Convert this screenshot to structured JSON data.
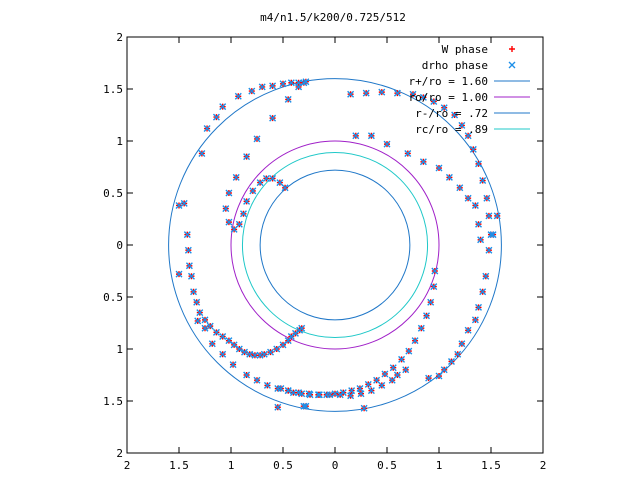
{
  "chart_data": {
    "type": "scatter",
    "title": "m4/n1.5/k200/0.725/512",
    "xlim": [
      -2,
      2
    ],
    "ylim": [
      -2,
      2
    ],
    "xticks": [
      -2,
      -1.5,
      -1,
      -0.5,
      0,
      0.5,
      1,
      1.5,
      2
    ],
    "xtick_labels": [
      "2",
      "1.5",
      "1",
      "0.5",
      "0",
      "0.5",
      "1",
      "1.5",
      "2"
    ],
    "yticks": [
      -2,
      -1.5,
      -1,
      -0.5,
      0,
      0.5,
      1,
      1.5,
      2
    ],
    "ytick_labels": [
      "2",
      "1.5",
      "1",
      "0.5",
      "0",
      "0.5",
      "1",
      "1.5",
      "2"
    ],
    "grid": false,
    "legend_position": "top-right",
    "series": [
      {
        "name": "W phase",
        "kind": "points",
        "marker": "plus",
        "color": "#ff0000",
        "x": [
          -1.5,
          -1.5,
          -1.45,
          -1.42,
          -1.41,
          -1.4,
          -1.38,
          -1.36,
          -1.33,
          -1.3,
          -1.25,
          -1.2,
          -1.14,
          -1.08,
          -1.02,
          -0.97,
          -0.92,
          -0.87,
          -0.82,
          -0.77,
          -0.72,
          -0.68,
          -0.62,
          -0.56,
          -0.5,
          -0.45,
          -0.42,
          -0.38,
          -0.34,
          -0.32,
          -1.28,
          -1.23,
          -1.14,
          -1.08,
          -0.93,
          -0.8,
          -0.7,
          -0.6,
          -0.5,
          -0.42,
          -0.35,
          -0.3,
          -0.28,
          -0.35,
          -0.45,
          -0.6,
          -0.75,
          -0.85,
          -0.95,
          -1.02,
          -1.05,
          -1.02,
          -0.97,
          -0.92,
          -0.88,
          -0.85,
          -0.79,
          -0.72,
          -0.66,
          -0.6,
          -0.53,
          -0.48,
          -1.32,
          -1.25,
          -1.18,
          -1.08,
          -0.98,
          -0.85,
          -0.75,
          -0.65,
          -0.55,
          -0.45,
          -0.35,
          -0.25,
          -0.15,
          -0.05,
          0.05,
          0.15,
          0.25,
          0.35,
          0.45,
          0.55,
          0.6,
          0.68,
          -0.28,
          0.15,
          0.3,
          0.45,
          0.6,
          0.75,
          0.85,
          0.95,
          1.05,
          1.15,
          1.22,
          1.28,
          1.33,
          1.38,
          1.42,
          1.46,
          1.48,
          1.5,
          0.2,
          0.35,
          0.5,
          0.7,
          0.85,
          1.0,
          1.1,
          1.2,
          1.28,
          1.35,
          1.38,
          1.4,
          0.96,
          0.95,
          0.92,
          0.88,
          0.83,
          0.77,
          0.71,
          0.64,
          0.56,
          0.48,
          0.4,
          0.32,
          0.24,
          0.16,
          0.08,
          0.0,
          -0.08,
          -0.16,
          -0.24,
          -0.32,
          -0.4,
          -0.45,
          -0.52,
          0.9,
          1.0,
          1.05,
          1.12,
          1.18,
          1.22,
          1.28,
          1.35,
          1.38,
          1.42,
          1.45,
          1.48,
          1.52,
          1.56,
          0.28,
          -0.3,
          -0.55
        ],
        "y": [
          0.38,
          -0.28,
          0.4,
          0.1,
          -0.05,
          -0.2,
          -0.3,
          -0.45,
          -0.55,
          -0.65,
          -0.72,
          -0.78,
          -0.84,
          -0.88,
          -0.92,
          -0.96,
          -1.0,
          -1.03,
          -1.05,
          -1.06,
          -1.06,
          -1.05,
          -1.03,
          -1.0,
          -0.96,
          -0.92,
          -0.88,
          -0.85,
          -0.82,
          -0.8,
          0.88,
          1.12,
          1.23,
          1.33,
          1.43,
          1.48,
          1.52,
          1.53,
          1.55,
          1.56,
          1.56,
          1.56,
          1.57,
          1.52,
          1.4,
          1.22,
          1.02,
          0.85,
          0.65,
          0.5,
          0.35,
          0.22,
          0.15,
          0.2,
          0.3,
          0.42,
          0.52,
          0.6,
          0.64,
          0.64,
          0.6,
          0.55,
          -0.73,
          -0.8,
          -0.95,
          -1.05,
          -1.15,
          -1.25,
          -1.3,
          -1.35,
          -1.38,
          -1.4,
          -1.42,
          -1.43,
          -1.44,
          -1.44,
          -1.44,
          -1.45,
          -1.43,
          -1.4,
          -1.35,
          -1.3,
          -1.25,
          -1.2,
          -1.55,
          1.45,
          1.46,
          1.47,
          1.46,
          1.45,
          1.42,
          1.38,
          1.32,
          1.25,
          1.15,
          1.05,
          0.92,
          0.78,
          0.62,
          0.45,
          0.28,
          0.1,
          1.05,
          1.05,
          0.97,
          0.88,
          0.8,
          0.74,
          0.65,
          0.55,
          0.45,
          0.38,
          0.2,
          0.05,
          -0.25,
          -0.4,
          -0.55,
          -0.68,
          -0.8,
          -0.92,
          -1.02,
          -1.1,
          -1.18,
          -1.24,
          -1.3,
          -1.34,
          -1.38,
          -1.4,
          -1.42,
          -1.43,
          -1.44,
          -1.44,
          -1.44,
          -1.43,
          -1.42,
          -1.4,
          -1.38,
          -1.28,
          -1.26,
          -1.2,
          -1.12,
          -1.05,
          -0.95,
          -0.82,
          -0.72,
          -0.6,
          -0.45,
          -0.3,
          -0.05,
          0.1,
          0.28,
          -1.57,
          -1.55,
          -1.56
        ]
      },
      {
        "name": "drho phase",
        "kind": "points",
        "marker": "cross",
        "color": "#1e8fe8",
        "x": [
          -1.5,
          -1.5,
          -1.45,
          -1.42,
          -1.41,
          -1.4,
          -1.38,
          -1.36,
          -1.33,
          -1.3,
          -1.25,
          -1.2,
          -1.14,
          -1.08,
          -1.02,
          -0.97,
          -0.92,
          -0.87,
          -0.82,
          -0.77,
          -0.72,
          -0.68,
          -0.62,
          -0.56,
          -0.5,
          -0.45,
          -0.42,
          -0.38,
          -0.34,
          -0.32,
          -1.28,
          -1.23,
          -1.14,
          -1.08,
          -0.93,
          -0.8,
          -0.7,
          -0.6,
          -0.5,
          -0.42,
          -0.35,
          -0.3,
          -0.28,
          -0.35,
          -0.45,
          -0.6,
          -0.75,
          -0.85,
          -0.95,
          -1.02,
          -1.05,
          -1.02,
          -0.97,
          -0.92,
          -0.88,
          -0.85,
          -0.79,
          -0.72,
          -0.66,
          -0.6,
          -0.53,
          -0.48,
          -1.32,
          -1.25,
          -1.18,
          -1.08,
          -0.98,
          -0.85,
          -0.75,
          -0.65,
          -0.55,
          -0.45,
          -0.35,
          -0.25,
          -0.15,
          -0.05,
          0.05,
          0.15,
          0.25,
          0.35,
          0.45,
          0.55,
          0.6,
          0.68,
          -0.28,
          0.15,
          0.3,
          0.45,
          0.6,
          0.75,
          0.85,
          0.95,
          1.05,
          1.15,
          1.22,
          1.28,
          1.33,
          1.38,
          1.42,
          1.46,
          1.48,
          1.5,
          0.2,
          0.35,
          0.5,
          0.7,
          0.85,
          1.0,
          1.1,
          1.2,
          1.28,
          1.35,
          1.38,
          1.4,
          0.96,
          0.95,
          0.92,
          0.88,
          0.83,
          0.77,
          0.71,
          0.64,
          0.56,
          0.48,
          0.4,
          0.32,
          0.24,
          0.16,
          0.08,
          0.0,
          -0.08,
          -0.16,
          -0.24,
          -0.32,
          -0.4,
          -0.45,
          -0.52,
          0.9,
          1.0,
          1.05,
          1.12,
          1.18,
          1.22,
          1.28,
          1.35,
          1.38,
          1.42,
          1.45,
          1.48,
          1.52,
          1.56,
          0.28,
          -0.3,
          -0.55
        ],
        "y": [
          0.38,
          -0.28,
          0.4,
          0.1,
          -0.05,
          -0.2,
          -0.3,
          -0.45,
          -0.55,
          -0.65,
          -0.72,
          -0.78,
          -0.84,
          -0.88,
          -0.92,
          -0.96,
          -1.0,
          -1.03,
          -1.05,
          -1.06,
          -1.06,
          -1.05,
          -1.03,
          -1.0,
          -0.96,
          -0.92,
          -0.88,
          -0.85,
          -0.82,
          -0.8,
          0.88,
          1.12,
          1.23,
          1.33,
          1.43,
          1.48,
          1.52,
          1.53,
          1.55,
          1.56,
          1.56,
          1.56,
          1.57,
          1.52,
          1.4,
          1.22,
          1.02,
          0.85,
          0.65,
          0.5,
          0.35,
          0.22,
          0.15,
          0.2,
          0.3,
          0.42,
          0.52,
          0.6,
          0.64,
          0.64,
          0.6,
          0.55,
          -0.73,
          -0.8,
          -0.95,
          -1.05,
          -1.15,
          -1.25,
          -1.3,
          -1.35,
          -1.38,
          -1.4,
          -1.42,
          -1.43,
          -1.44,
          -1.44,
          -1.44,
          -1.45,
          -1.43,
          -1.4,
          -1.35,
          -1.3,
          -1.25,
          -1.2,
          -1.55,
          1.45,
          1.46,
          1.47,
          1.46,
          1.45,
          1.42,
          1.38,
          1.32,
          1.25,
          1.15,
          1.05,
          0.92,
          0.78,
          0.62,
          0.45,
          0.28,
          0.1,
          1.05,
          1.05,
          0.97,
          0.88,
          0.8,
          0.74,
          0.65,
          0.55,
          0.45,
          0.38,
          0.2,
          0.05,
          -0.25,
          -0.4,
          -0.55,
          -0.68,
          -0.8,
          -0.92,
          -1.02,
          -1.1,
          -1.18,
          -1.24,
          -1.3,
          -1.34,
          -1.38,
          -1.4,
          -1.42,
          -1.43,
          -1.44,
          -1.44,
          -1.44,
          -1.43,
          -1.42,
          -1.4,
          -1.38,
          -1.28,
          -1.26,
          -1.2,
          -1.12,
          -1.05,
          -0.95,
          -0.82,
          -0.72,
          -0.6,
          -0.45,
          -0.3,
          -0.05,
          0.1,
          0.28,
          -1.57,
          -1.55,
          -1.56
        ]
      },
      {
        "name": "r+/ro = 1.60",
        "kind": "circle",
        "radius": 1.6,
        "color": "#1f77c8"
      },
      {
        "name": "ro/ro = 1.00",
        "kind": "circle",
        "radius": 1.0,
        "color": "#a020c8"
      },
      {
        "name": "r-/ro = .72",
        "kind": "circle",
        "radius": 0.72,
        "color": "#1f77c8"
      },
      {
        "name": "rc/ro = .89",
        "kind": "circle",
        "radius": 0.89,
        "color": "#1fc8c8"
      }
    ]
  }
}
